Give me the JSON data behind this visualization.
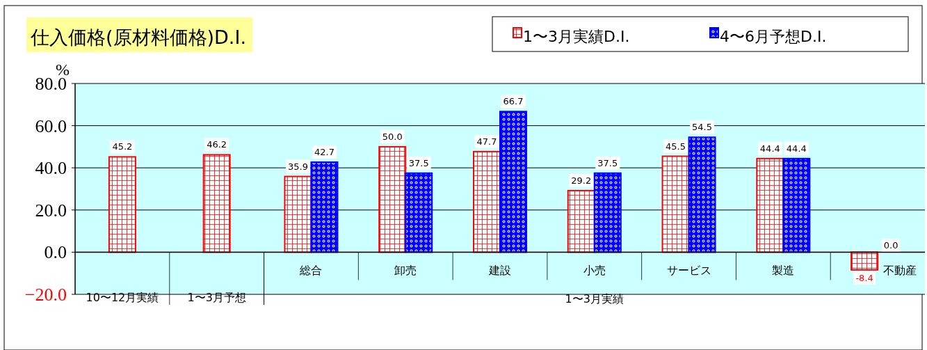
{
  "chart_data": {
    "type": "bar",
    "title": "仕入価格(原材料価格)D.I.",
    "ylabel": "%",
    "categories": [
      "10〜12月実績",
      "1〜3月予想",
      "総合",
      "卸売",
      "建設",
      "小売",
      "サービス",
      "製造",
      "不動産"
    ],
    "series": [
      {
        "name": "1〜3月実績D.I.",
        "color": "#ff0000",
        "values": [
          45.2,
          46.2,
          35.9,
          50.0,
          47.7,
          29.2,
          45.5,
          44.4,
          -8.4
        ],
        "value_labels": [
          "45.2",
          "46.2",
          "35.9",
          "50.0",
          "47.7",
          "29.2",
          "45.5",
          "44.4",
          "-8.4"
        ]
      },
      {
        "name": "4〜6月予想D.I.",
        "color": "#0000ff",
        "values": [
          null,
          null,
          42.7,
          37.5,
          66.7,
          37.5,
          54.5,
          44.4,
          0.0
        ],
        "value_labels": [
          null,
          null,
          "42.7",
          "37.5",
          "66.7",
          "37.5",
          "54.5",
          "44.4",
          "0.0"
        ]
      }
    ],
    "ylim": [
      -20,
      80
    ],
    "yticks": [
      {
        "value": -20,
        "label": "−20.0"
      },
      {
        "value": 0,
        "label": "0.0"
      },
      {
        "value": 20,
        "label": "20.0"
      },
      {
        "value": 40,
        "label": "40.0"
      },
      {
        "value": 60,
        "label": "60.0"
      },
      {
        "value": 80,
        "label": "80.0"
      }
    ],
    "grid": "y",
    "legend": "top right",
    "annotations": [
      "1〜3月実績"
    ]
  }
}
